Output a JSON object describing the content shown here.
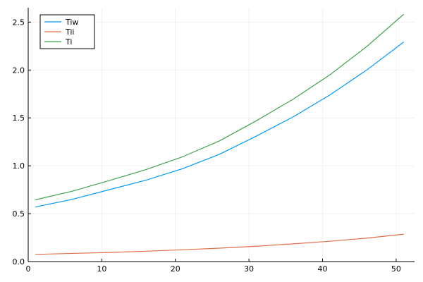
{
  "chart_data": {
    "type": "line",
    "title": "",
    "xlabel": "",
    "ylabel": "",
    "xlim": [
      0,
      52.5
    ],
    "ylim": [
      0,
      2.65
    ],
    "xticks": [
      0,
      10,
      20,
      30,
      40,
      50
    ],
    "yticks": [
      0.0,
      0.5,
      1.0,
      1.5,
      2.0,
      2.5
    ],
    "xtick_labels": [
      "0",
      "10",
      "20",
      "30",
      "40",
      "50"
    ],
    "ytick_labels": [
      "0.0",
      "0.5",
      "1.0",
      "1.5",
      "2.0",
      "2.5"
    ],
    "grid": true,
    "legend_position": "top-left",
    "series": [
      {
        "name": "Tiw",
        "color": "#009AFA",
        "x": [
          1,
          6,
          11,
          16,
          21,
          26,
          31,
          36,
          41,
          46,
          51
        ],
        "y": [
          0.57,
          0.65,
          0.75,
          0.85,
          0.97,
          1.12,
          1.31,
          1.51,
          1.74,
          2.0,
          2.29
        ]
      },
      {
        "name": "Tii",
        "color": "#E36F47",
        "x": [
          1,
          6,
          11,
          16,
          21,
          26,
          31,
          36,
          41,
          46,
          51
        ],
        "y": [
          0.075,
          0.085,
          0.095,
          0.108,
          0.123,
          0.14,
          0.16,
          0.185,
          0.212,
          0.245,
          0.285
        ]
      },
      {
        "name": "Ti",
        "color": "#3EA44E",
        "x": [
          1,
          6,
          11,
          16,
          21,
          26,
          31,
          36,
          41,
          46,
          51
        ],
        "y": [
          0.645,
          0.735,
          0.845,
          0.96,
          1.095,
          1.26,
          1.47,
          1.695,
          1.95,
          2.245,
          2.58
        ]
      }
    ]
  }
}
